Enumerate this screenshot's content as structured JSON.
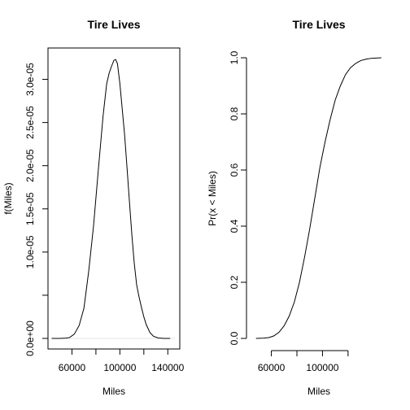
{
  "chart_data": [
    {
      "type": "line",
      "title": "Tire Lives",
      "xlabel": "Miles",
      "ylabel": "f(Miles)",
      "xlim": [
        40000,
        150000
      ],
      "ylim": [
        0,
        3.25e-05
      ],
      "x_ticks": [
        60000,
        80000,
        100000,
        120000,
        140000
      ],
      "x_tick_labels": [
        "60000",
        "",
        "100000",
        "",
        "140000"
      ],
      "y_ticks": [
        0,
        5e-06,
        1e-05,
        1.5e-05,
        2e-05,
        2.5e-05,
        3e-05
      ],
      "y_tick_labels": [
        "0.0e+00",
        "",
        "1.0e-05",
        "1.5e-05",
        "2.0e-05",
        "2.5e-05",
        "3.0e-05"
      ],
      "baseline": 0,
      "x": [
        43000,
        50000,
        55000,
        58000,
        62000,
        66000,
        70000,
        74000,
        78000,
        82000,
        86000,
        89000,
        91000,
        93000,
        95000,
        96500,
        98000,
        100000,
        102000,
        104000,
        106000,
        108000,
        110000,
        112000,
        114000,
        116000,
        118000,
        120000,
        122000,
        125000,
        128000,
        132000,
        137000,
        142000
      ],
      "y": [
        0,
        0,
        3e-08,
        1e-07,
        5e-07,
        1.5e-06,
        3.5e-06,
        7.8e-06,
        1.3e-05,
        1.95e-05,
        2.58e-05,
        2.95e-05,
        3.07e-05,
        3.15e-05,
        3.22e-05,
        3.23e-05,
        3.18e-05,
        2.95e-05,
        2.65e-05,
        2.35e-05,
        1.97e-05,
        1.58e-05,
        1.2e-05,
        8.7e-06,
        6.2e-06,
        4.8e-06,
        3.6e-06,
        2.5e-06,
        1.6e-06,
        7e-07,
        2.5e-07,
        5e-08,
        0,
        0
      ]
    },
    {
      "type": "line",
      "title": "Tire Lives",
      "xlabel": "Miles",
      "ylabel": "Pr(x < Miles)",
      "xlim": [
        45000,
        150000
      ],
      "ylim": [
        -0.02,
        1.04
      ],
      "x_ticks": [
        60000,
        80000,
        100000,
        120000
      ],
      "x_tick_labels": [
        "60000",
        "",
        "100000",
        ""
      ],
      "y_ticks": [
        0,
        0.2,
        0.4,
        0.6,
        0.8,
        1.0
      ],
      "y_tick_labels": [
        "0.0",
        "0.2",
        "0.4",
        "0.6",
        "0.8",
        "1.0"
      ],
      "x": [
        48000,
        54000,
        58000,
        62000,
        66000,
        70000,
        74000,
        78000,
        82000,
        86000,
        90000,
        94000,
        98000,
        102000,
        106000,
        110000,
        114000,
        118000,
        122000,
        126000,
        130000,
        134000,
        138000,
        142000,
        146000
      ],
      "y": [
        0,
        0.001,
        0.003,
        0.009,
        0.022,
        0.045,
        0.08,
        0.13,
        0.2,
        0.29,
        0.39,
        0.5,
        0.61,
        0.7,
        0.78,
        0.85,
        0.9,
        0.94,
        0.965,
        0.98,
        0.99,
        0.995,
        0.998,
        0.999,
        1.0
      ]
    }
  ]
}
